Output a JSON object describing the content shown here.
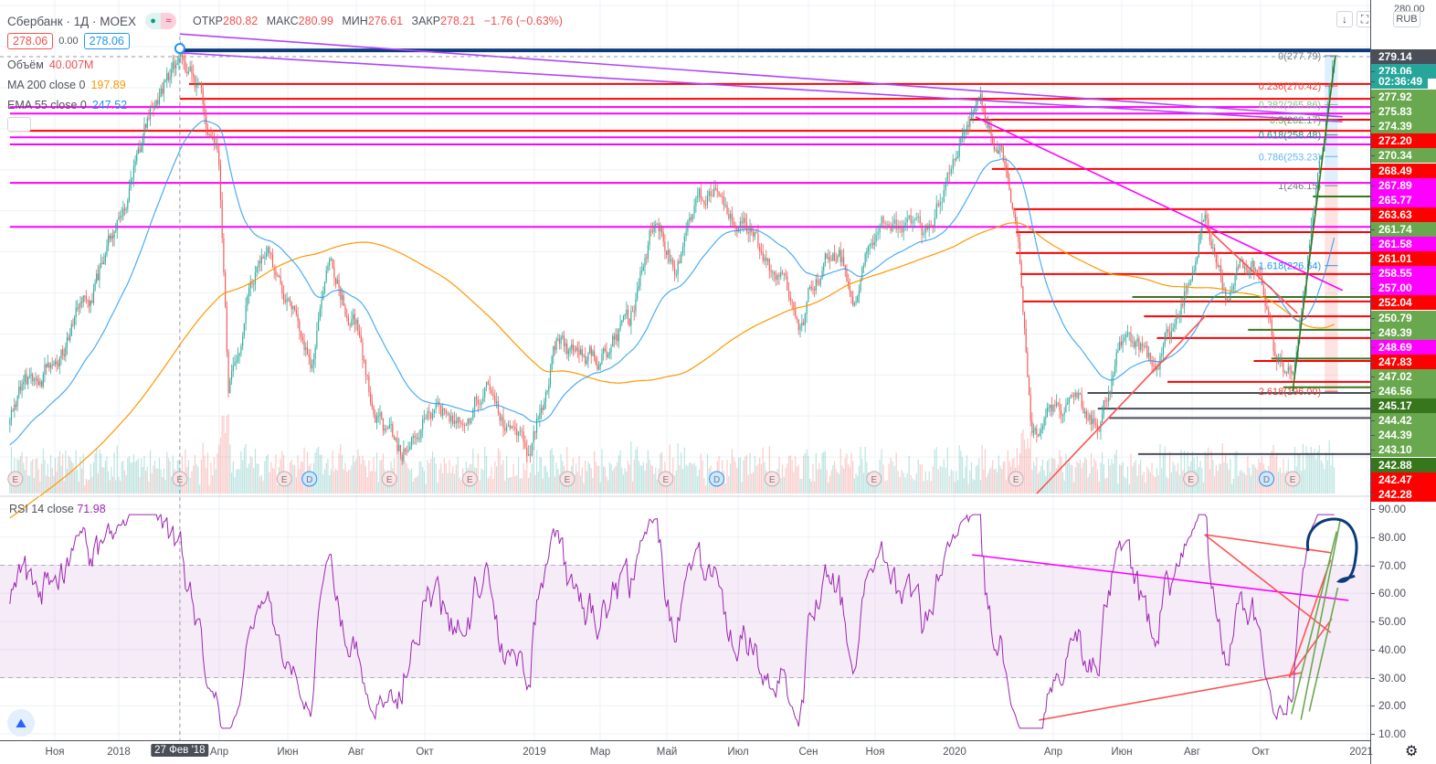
{
  "header": {
    "symbol": "Сбербанк · 1Д · MOEX",
    "ohlc": {
      "open_label": "ОТКР",
      "open": "280.82",
      "high_label": "МАКС",
      "high": "280.99",
      "low_label": "МИН",
      "low": "276.61",
      "close_label": "ЗАКР",
      "close": "278.21",
      "change": "−1.76 (−0.63%)"
    },
    "bid": "278.06",
    "spread": "0.00",
    "ask": "278.06",
    "volume_label": "Объём",
    "volume": "40.007M",
    "ma_label": "MA 200 close 0",
    "ma_value": "197.89",
    "ema_label": "EMA 55 close 0",
    "ema_value": "247.52",
    "pill_icon": "market-status-dot",
    "pill_text": "≈"
  },
  "toolbar": {
    "download_icon": "↓",
    "fullscreen_icon": "⛶",
    "currency": "RUB"
  },
  "price_axis": {
    "top_label": "280.00",
    "labels": [
      {
        "text": "279.14",
        "color": "#4a4e59"
      },
      {
        "text": "278.06",
        "color": "#26a69a"
      },
      {
        "text": "02:36:49",
        "color": "#26a69a"
      },
      {
        "text": "277.92",
        "color": "#6aa84f"
      },
      {
        "text": "275.83",
        "color": "#6aa84f"
      },
      {
        "text": "274.39",
        "color": "#6aa84f"
      },
      {
        "text": "272.20",
        "color": "#ff0000"
      },
      {
        "text": "270.34",
        "color": "#6aa84f"
      },
      {
        "text": "268.49",
        "color": "#ff0000"
      },
      {
        "text": "267.89",
        "color": "#ff00ff"
      },
      {
        "text": "265.77",
        "color": "#ff00ff"
      },
      {
        "text": "263.63",
        "color": "#ff0000"
      },
      {
        "text": "261.74",
        "color": "#6aa84f"
      },
      {
        "text": "261.58",
        "color": "#ff00ff"
      },
      {
        "text": "261.01",
        "color": "#ff0000"
      },
      {
        "text": "258.55",
        "color": "#ff00ff"
      },
      {
        "text": "257.00",
        "color": "#ff00ff"
      },
      {
        "text": "252.04",
        "color": "#ff0000"
      },
      {
        "text": "250.79",
        "color": "#6aa84f"
      },
      {
        "text": "249.39",
        "color": "#6aa84f"
      },
      {
        "text": "248.69",
        "color": "#ff00ff"
      },
      {
        "text": "247.83",
        "color": "#ff0000"
      },
      {
        "text": "247.02",
        "color": "#6aa84f"
      },
      {
        "text": "246.56",
        "color": "#6aa84f"
      },
      {
        "text": "245.17",
        "color": "#38761d"
      },
      {
        "text": "244.42",
        "color": "#6aa84f"
      },
      {
        "text": "244.39",
        "color": "#6aa84f"
      },
      {
        "text": "243.10",
        "color": "#6aa84f"
      },
      {
        "text": "242.88",
        "color": "#38761d"
      },
      {
        "text": "242.47",
        "color": "#ff0000"
      },
      {
        "text": "242.28",
        "color": "#ff0000"
      }
    ]
  },
  "rsi": {
    "label": "RSI 14 close",
    "value": "71.98",
    "color": "#9c27b0",
    "axis": [
      "90.00",
      "80.00",
      "70.00",
      "60.00",
      "50.00",
      "40.00",
      "30.00",
      "20.00",
      "10.00"
    ]
  },
  "time_axis": [
    {
      "text": "Ноя",
      "date": "2017-11-01"
    },
    {
      "text": "2018",
      "date": "2018-01-01"
    },
    {
      "text": "27 Фев '18",
      "date": "2018-02-27",
      "highlight": true
    },
    {
      "text": "Апр",
      "date": "2018-04-01"
    },
    {
      "text": "Июн",
      "date": "2018-06-01"
    },
    {
      "text": "Авг",
      "date": "2018-08-01"
    },
    {
      "text": "Окт",
      "date": "2018-10-01"
    },
    {
      "text": "2019",
      "date": "2019-01-01"
    },
    {
      "text": "Мар",
      "date": "2019-03-01"
    },
    {
      "text": "Май",
      "date": "2019-05-01"
    },
    {
      "text": "Июл",
      "date": "2019-07-01"
    },
    {
      "text": "Сен",
      "date": "2019-09-01"
    },
    {
      "text": "Ноя",
      "date": "2019-11-01"
    },
    {
      "text": "2020",
      "date": "2020-01-01"
    },
    {
      "text": "Апр",
      "date": "2020-04-01"
    },
    {
      "text": "Июн",
      "date": "2020-06-01"
    },
    {
      "text": "Авг",
      "date": "2020-08-01"
    },
    {
      "text": "Окт",
      "date": "2020-10-01"
    },
    {
      "text": "2021",
      "date": "2021-01-01"
    }
  ],
  "chart_data": {
    "type": "candlestick",
    "title": "Сбербанк · 1Д · MOEX",
    "ylim": [
      171,
      292
    ],
    "price_path": [
      [
        "2017-09-20",
        190
      ],
      [
        "2017-11-01",
        204.5
      ],
      [
        "2017-12-05",
        217.9
      ],
      [
        "2018-01-01",
        237.9
      ],
      [
        "2018-01-26",
        260.2
      ],
      [
        "2018-02-27",
        278
      ],
      [
        "2018-03-11",
        271.3
      ],
      [
        "2018-04-01",
        251.3
      ],
      [
        "2018-04-09",
        197.8
      ],
      [
        "2018-04-25",
        217.9
      ],
      [
        "2018-05-11",
        231.2
      ],
      [
        "2018-06-03",
        217.9
      ],
      [
        "2018-06-23",
        200
      ],
      [
        "2018-07-09",
        226.8
      ],
      [
        "2018-08-01",
        211.2
      ],
      [
        "2018-08-17",
        189
      ],
      [
        "2018-09-11",
        180
      ],
      [
        "2018-10-05",
        197.8
      ],
      [
        "2018-10-27",
        186.7
      ],
      [
        "2018-11-20",
        197.8
      ],
      [
        "2018-12-24",
        180
      ],
      [
        "2019-01-22",
        209
      ],
      [
        "2019-02-25",
        202.3
      ],
      [
        "2019-03-28",
        213.4
      ],
      [
        "2019-04-19",
        237.9
      ],
      [
        "2019-05-09",
        226.8
      ],
      [
        "2019-06-09",
        244.6
      ],
      [
        "2019-07-10",
        235.7
      ],
      [
        "2019-08-11",
        220.1
      ],
      [
        "2019-08-23",
        213.4
      ],
      [
        "2019-09-21",
        233.5
      ],
      [
        "2019-10-12",
        222.3
      ],
      [
        "2019-11-06",
        240.2
      ],
      [
        "2019-12-07",
        231.2
      ],
      [
        "2019-12-28",
        251.3
      ],
      [
        "2020-01-18",
        266.9
      ],
      [
        "2020-02-17",
        251.3
      ],
      [
        "2020-02-27",
        233.5
      ],
      [
        "2020-03-03",
        217.9
      ],
      [
        "2020-03-12",
        184.5
      ],
      [
        "2020-04-07",
        191.2
      ],
      [
        "2020-05-09",
        186.7
      ],
      [
        "2020-06-07",
        215.6
      ],
      [
        "2020-06-26",
        202.3
      ],
      [
        "2020-07-19",
        213.4
      ],
      [
        "2020-08-13",
        237.9
      ],
      [
        "2020-09-03",
        220.1
      ],
      [
        "2020-09-23",
        226.8
      ],
      [
        "2020-10-12",
        206.7
      ],
      [
        "2020-10-28",
        200
      ],
      [
        "2020-11-09",
        224.6
      ],
      [
        "2020-11-21",
        246.8
      ],
      [
        "2020-12-04",
        277.9
      ]
    ],
    "indicators": [
      {
        "name": "MA 200",
        "color": "#ff9800"
      },
      {
        "name": "EMA 55",
        "color": "#2196f3"
      },
      {
        "name": "RSI 14",
        "color": "#9c27b0",
        "band": [
          30,
          70
        ]
      }
    ],
    "fibonacci": [
      {
        "label": "0(277.79)",
        "price": 277.79,
        "color": "#787b86"
      },
      {
        "label": "0.236(270.42)",
        "price": 270.42,
        "color": "#f44336"
      },
      {
        "label": "0.382(265.86)",
        "price": 265.86,
        "color": "#81c784"
      },
      {
        "label": "0.5(262.17)",
        "price": 262.17,
        "color": "#4caf50"
      },
      {
        "label": "0.618(258.48)",
        "price": 258.48,
        "color": "#089981"
      },
      {
        "label": "0.786(253.23)",
        "price": 253.23,
        "color": "#64b5f6"
      },
      {
        "label": "1(246.15)",
        "price": 246.15,
        "color": "#787b86"
      },
      {
        "label": "1.618(226.64)",
        "price": 226.64,
        "color": "#2196f3"
      },
      {
        "label": "2.618(196.00)",
        "price": 196.0,
        "color": "#f44336"
      }
    ],
    "horizontal_levels": [
      {
        "price": 279.1,
        "color": "#0d3b7a",
        "from": "2018-02-27",
        "width": 4
      },
      {
        "price": 270.9,
        "color": "#ff0000",
        "from": "2018-03-05"
      },
      {
        "price": 267.3,
        "color": "#ff0000",
        "from": "2018-02-27"
      },
      {
        "price": 265.3,
        "color": "#ff00ff",
        "from": "2017-09-20"
      },
      {
        "price": 263.7,
        "color": "#ff00ff",
        "from": "2017-09-20"
      },
      {
        "price": 262.2,
        "color": "#ff0000",
        "from": "2020-01-15"
      },
      {
        "price": 259.5,
        "color": "#ff0000",
        "from": "2017-09-20"
      },
      {
        "price": 257.9,
        "color": "#ff00ff",
        "from": "2017-09-20"
      },
      {
        "price": 256.2,
        "color": "#ff00ff",
        "from": "2017-09-20"
      },
      {
        "price": 250.2,
        "color": "#ff0000",
        "from": "2020-02-05"
      },
      {
        "price": 246.8,
        "color": "#ff00ff",
        "from": "2017-09-20"
      },
      {
        "price": 243.5,
        "color": "#38761d",
        "from": "2020-11-15"
      },
      {
        "price": 240.4,
        "color": "#ff0000",
        "from": "2020-02-25"
      },
      {
        "price": 236.1,
        "color": "#ff00ff",
        "from": "2017-09-20"
      },
      {
        "price": 234.8,
        "color": "#ff0000",
        "from": "2020-02-27"
      },
      {
        "price": 229.7,
        "color": "#ff0000",
        "from": "2020-02-27"
      },
      {
        "price": 224.6,
        "color": "#ff0000",
        "from": "2020-03-01"
      },
      {
        "price": 219.0,
        "color": "#38761d",
        "from": "2020-06-10"
      },
      {
        "price": 217.9,
        "color": "#ff0000",
        "from": "2020-03-03"
      },
      {
        "price": 214.3,
        "color": "#ff0000",
        "from": "2020-06-20"
      },
      {
        "price": 211.0,
        "color": "#38761d",
        "from": "2020-09-20"
      },
      {
        "price": 209.0,
        "color": "#ff0000",
        "from": "2020-07-01"
      },
      {
        "price": 204.0,
        "color": "#38761d",
        "from": "2020-10-10"
      },
      {
        "price": 203.4,
        "color": "#ff0000",
        "from": "2020-09-25"
      },
      {
        "price": 198.3,
        "color": "#ff0000",
        "from": "2020-07-10"
      },
      {
        "price": 197.0,
        "color": "#38761d",
        "from": "2020-10-20"
      },
      {
        "price": 195.6,
        "color": "#4a4e59",
        "from": "2020-05-01"
      },
      {
        "price": 191.8,
        "color": "#4a4e59",
        "from": "2020-05-10"
      },
      {
        "price": 189.5,
        "color": "#4a4e59",
        "from": "2020-05-20"
      },
      {
        "price": 180.7,
        "color": "#4a4e59",
        "from": "2020-06-15"
      }
    ],
    "trendlines": [
      {
        "pane": "price",
        "color": "#b044ff",
        "a": [
          "2018-02-27",
          283.1
        ],
        "b": [
          "2020-12-10",
          262.9
        ]
      },
      {
        "pane": "price",
        "color": "#b044ff",
        "a": [
          "2018-02-27",
          278.5
        ],
        "b": [
          "2020-12-10",
          261.7
        ]
      },
      {
        "pane": "price",
        "color": "#ff00ff",
        "a": [
          "2020-01-20",
          262.9
        ],
        "b": [
          "2020-12-10",
          220.6
        ]
      },
      {
        "pane": "price",
        "color": "#ff5252",
        "a": [
          "2020-03-16",
          171.1
        ],
        "b": [
          "2020-08-13",
          214.5
        ]
      },
      {
        "pane": "price",
        "color": "#ff5252",
        "a": [
          "2020-08-13",
          236
        ],
        "b": [
          "2020-11-02",
          215
        ]
      },
      {
        "pane": "price",
        "color": "#38761d",
        "a": [
          "2020-10-28",
          196
        ],
        "b": [
          "2020-12-04",
          277.8
        ]
      },
      {
        "pane": "rsi",
        "color": "#ff00ff",
        "a": [
          "2020-01-17",
          73.7
        ],
        "b": [
          "2020-12-15",
          57.5
        ]
      },
      {
        "pane": "rsi",
        "color": "#ff5252",
        "a": [
          "2020-03-18",
          14.9
        ],
        "b": [
          "2020-11-06",
          31.8
        ]
      },
      {
        "pane": "rsi",
        "color": "#ff5252",
        "a": [
          "2020-08-12",
          80.9
        ],
        "b": [
          "2020-12-01",
          74.4
        ]
      },
      {
        "pane": "rsi",
        "color": "#ff5252",
        "a": [
          "2020-08-12",
          80.9
        ],
        "b": [
          "2020-11-30",
          46
        ]
      },
      {
        "pane": "rsi",
        "color": "#ff5252",
        "a": [
          "2020-10-25",
          30
        ],
        "b": [
          "2020-12-01",
          51
        ]
      },
      {
        "pane": "rsi",
        "color": "#ff5252",
        "a": [
          "2020-10-25",
          30
        ],
        "b": [
          "2020-11-30",
          72
        ]
      },
      {
        "pane": "rsi",
        "color": "#6aa84f",
        "a": [
          "2020-10-27",
          17
        ],
        "b": [
          "2020-12-05",
          82
        ]
      },
      {
        "pane": "rsi",
        "color": "#6aa84f",
        "a": [
          "2020-11-05",
          15
        ],
        "b": [
          "2020-12-08",
          86
        ]
      },
      {
        "pane": "rsi",
        "color": "#6aa84f",
        "a": [
          "2020-11-12",
          18
        ],
        "b": [
          "2020-12-06",
          62
        ]
      }
    ],
    "events": [
      {
        "date": "2017-09-25",
        "letter": "E"
      },
      {
        "date": "2018-02-27",
        "letter": "E"
      },
      {
        "date": "2018-05-28",
        "letter": "E"
      },
      {
        "date": "2018-06-20",
        "letter": "D"
      },
      {
        "date": "2018-08-30",
        "letter": "E"
      },
      {
        "date": "2018-11-08",
        "letter": "E"
      },
      {
        "date": "2019-01-31",
        "letter": "E"
      },
      {
        "date": "2019-04-30",
        "letter": "E"
      },
      {
        "date": "2019-06-13",
        "letter": "D"
      },
      {
        "date": "2019-07-30",
        "letter": "E"
      },
      {
        "date": "2019-10-30",
        "letter": "E"
      },
      {
        "date": "2020-02-27",
        "letter": "E"
      },
      {
        "date": "2020-07-30",
        "letter": "E"
      },
      {
        "date": "2020-10-06",
        "letter": "D"
      },
      {
        "date": "2020-10-28",
        "letter": "E"
      }
    ]
  }
}
